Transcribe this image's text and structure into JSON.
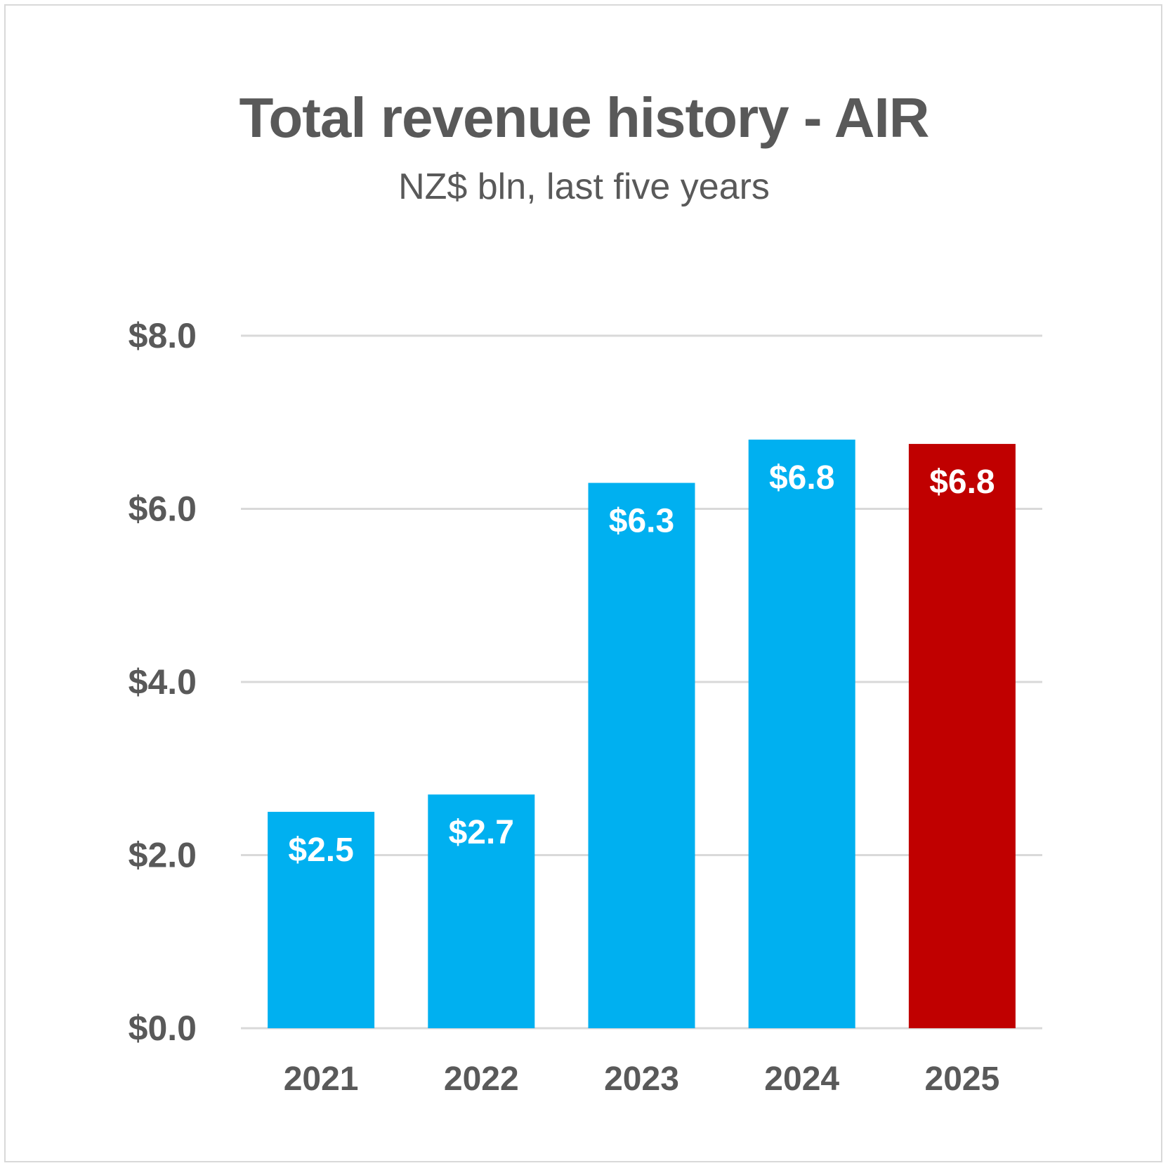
{
  "chart_data": {
    "type": "bar",
    "title": "Total revenue history - AIR",
    "subtitle": "NZ$ bln, last five years",
    "categories": [
      "2021",
      "2022",
      "2023",
      "2024",
      "2025"
    ],
    "values": [
      2.5,
      2.7,
      6.3,
      6.8,
      6.75
    ],
    "data_labels": [
      "$2.5",
      "$2.7",
      "$6.3",
      "$6.8",
      "$6.8"
    ],
    "bar_colors": [
      "#00b0f0",
      "#00b0f0",
      "#00b0f0",
      "#00b0f0",
      "#c00000"
    ],
    "ylim": [
      0,
      8
    ],
    "yticks": [
      0,
      2,
      4,
      6,
      8
    ],
    "ytick_labels": [
      "$0.0",
      "$2.0",
      "$4.0",
      "$6.0",
      "$8.0"
    ],
    "grid": true,
    "legend": "none",
    "colors": {
      "text": "#595959",
      "gridline": "#d9d9d9",
      "label_text": "#ffffff"
    }
  }
}
